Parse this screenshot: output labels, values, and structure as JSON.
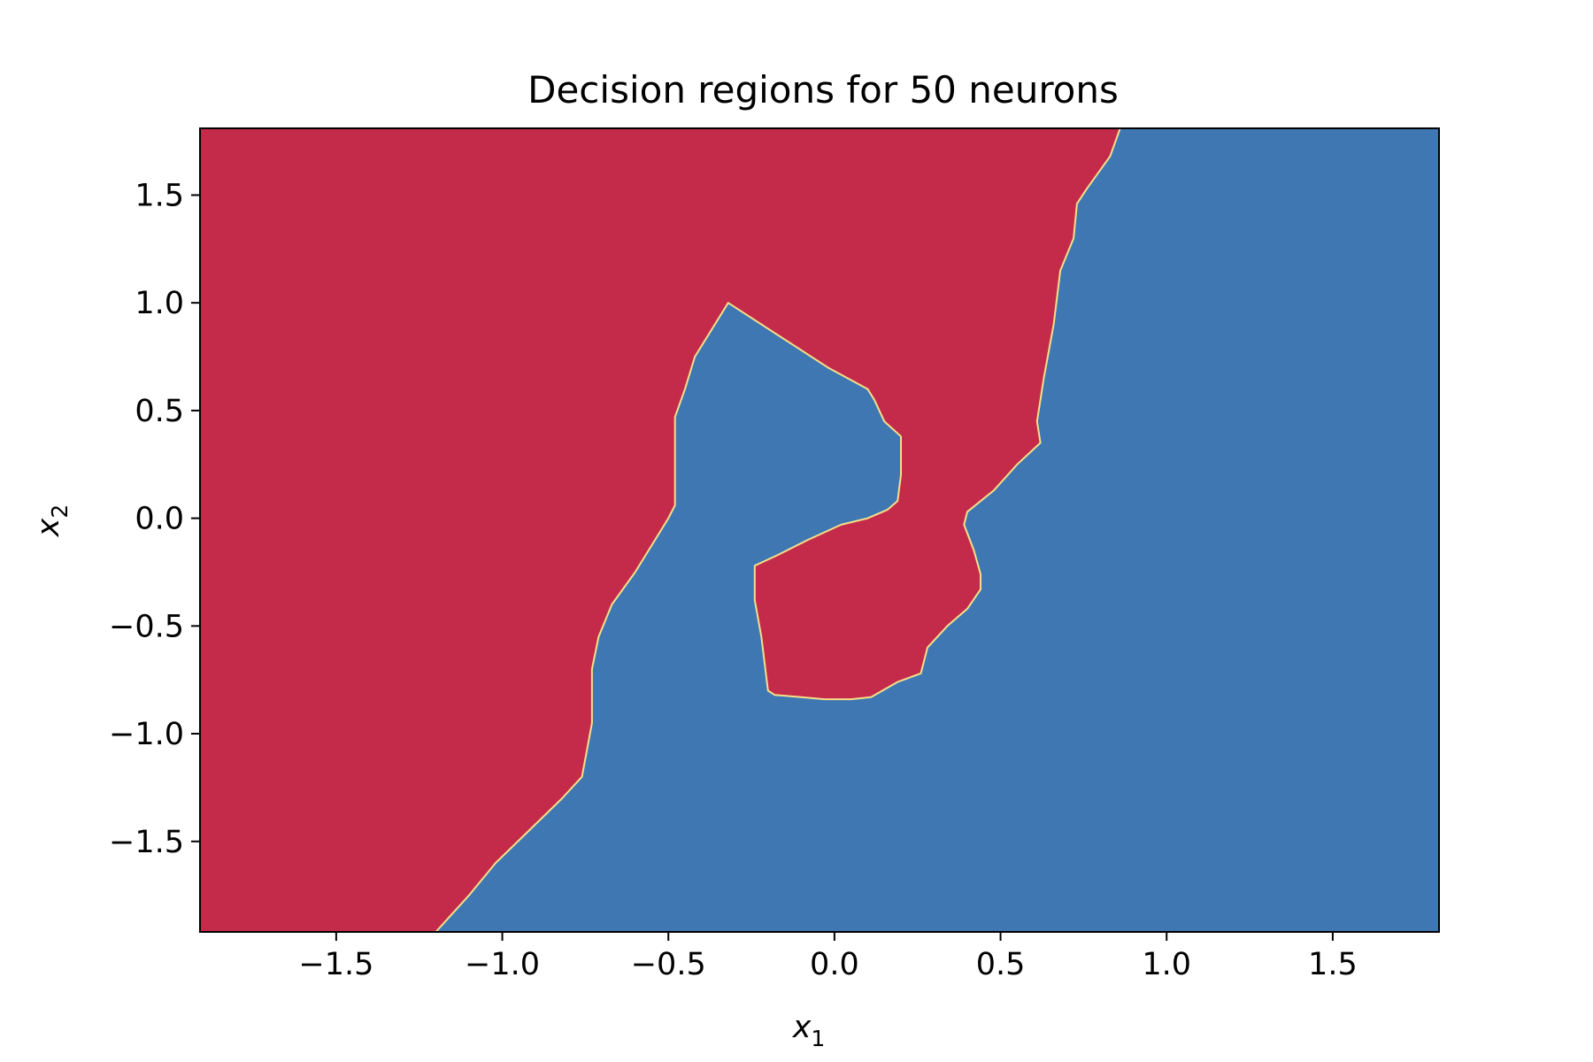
{
  "chart_data": {
    "type": "heatmap",
    "title": "Decision regions for 50 neurons",
    "xlabel": "x",
    "xlabel_sub": "1",
    "ylabel": "x",
    "ylabel_sub": "2",
    "xlim": [
      -1.91,
      1.82
    ],
    "ylim": [
      -1.92,
      1.81
    ],
    "x_ticks": [
      {
        "value": -1.5,
        "label": "−1.5"
      },
      {
        "value": -1.0,
        "label": "−1.0"
      },
      {
        "value": -0.5,
        "label": "−0.5"
      },
      {
        "value": 0.0,
        "label": "0.0"
      },
      {
        "value": 0.5,
        "label": "0.5"
      },
      {
        "value": 1.0,
        "label": "1.0"
      },
      {
        "value": 1.5,
        "label": "1.5"
      }
    ],
    "y_ticks": [
      {
        "value": 1.5,
        "label": "1.5"
      },
      {
        "value": 1.0,
        "label": "1.0"
      },
      {
        "value": 0.5,
        "label": "0.5"
      },
      {
        "value": 0.0,
        "label": "0.0"
      },
      {
        "value": -0.5,
        "label": "−0.5"
      },
      {
        "value": -1.0,
        "label": "−1.0"
      },
      {
        "value": -1.5,
        "label": "−1.5"
      }
    ],
    "grid": false,
    "colors": {
      "class_a": "#c42b4a",
      "class_b": "#3f77b2",
      "boundary": "#f3e08a",
      "frame": "#000000"
    },
    "regions": {
      "class_a_outer": [
        [
          -1.91,
          1.81
        ],
        [
          0.86,
          1.81
        ],
        [
          0.83,
          1.68
        ],
        [
          0.76,
          1.53
        ],
        [
          0.73,
          1.46
        ],
        [
          0.72,
          1.3
        ],
        [
          0.68,
          1.15
        ],
        [
          0.66,
          0.9
        ],
        [
          0.63,
          0.65
        ],
        [
          0.61,
          0.45
        ],
        [
          0.62,
          0.35
        ],
        [
          0.55,
          0.25
        ],
        [
          0.48,
          0.13
        ],
        [
          0.4,
          0.03
        ],
        [
          0.39,
          -0.03
        ],
        [
          0.42,
          -0.15
        ],
        [
          0.44,
          -0.26
        ],
        [
          0.44,
          -0.33
        ],
        [
          0.4,
          -0.42
        ],
        [
          0.34,
          -0.5
        ],
        [
          0.28,
          -0.6
        ],
        [
          0.26,
          -0.72
        ],
        [
          0.19,
          -0.76
        ],
        [
          0.11,
          -0.83
        ],
        [
          0.05,
          -0.84
        ],
        [
          -0.03,
          -0.84
        ],
        [
          -0.1,
          -0.83
        ],
        [
          -0.18,
          -0.82
        ],
        [
          -0.2,
          -0.8
        ],
        [
          -0.22,
          -0.55
        ],
        [
          -0.24,
          -0.38
        ],
        [
          -0.24,
          -0.22
        ],
        [
          -0.17,
          -0.17
        ],
        [
          -0.08,
          -0.1
        ],
        [
          0.02,
          -0.03
        ],
        [
          0.1,
          0.0
        ],
        [
          0.16,
          0.04
        ],
        [
          0.19,
          0.08
        ],
        [
          0.2,
          0.2
        ],
        [
          0.2,
          0.38
        ],
        [
          0.15,
          0.45
        ],
        [
          0.12,
          0.55
        ],
        [
          0.1,
          0.6
        ],
        [
          -0.02,
          0.7
        ],
        [
          -0.32,
          1.0
        ],
        [
          -0.36,
          0.9
        ],
        [
          -0.42,
          0.75
        ],
        [
          -0.45,
          0.6
        ],
        [
          -0.48,
          0.47
        ],
        [
          -0.48,
          0.06
        ],
        [
          -0.5,
          0.0
        ],
        [
          -0.54,
          -0.1
        ],
        [
          -0.6,
          -0.25
        ],
        [
          -0.67,
          -0.4
        ],
        [
          -0.71,
          -0.55
        ],
        [
          -0.73,
          -0.7
        ],
        [
          -0.73,
          -0.95
        ],
        [
          -0.76,
          -1.2
        ],
        [
          -0.82,
          -1.3
        ],
        [
          -0.92,
          -1.45
        ],
        [
          -1.02,
          -1.6
        ],
        [
          -1.1,
          -1.75
        ],
        [
          -1.2,
          -1.92
        ],
        [
          -1.91,
          -1.92
        ]
      ]
    }
  }
}
